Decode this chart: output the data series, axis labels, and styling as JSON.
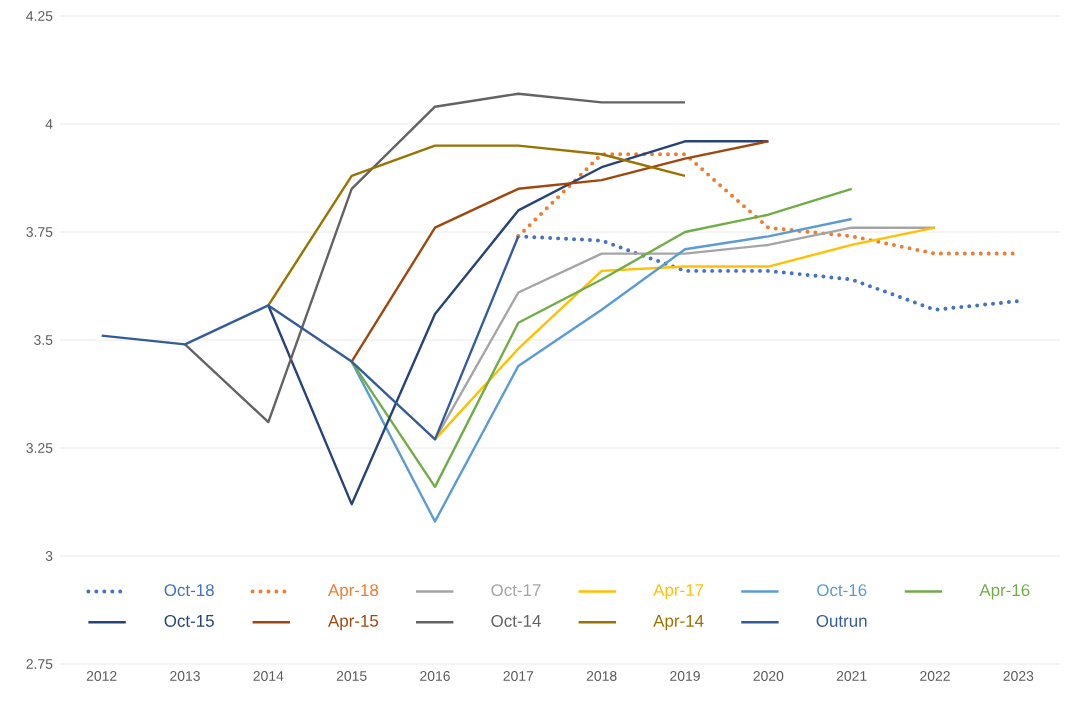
{
  "chart_data": {
    "type": "line",
    "x": [
      2012,
      2013,
      2014,
      2015,
      2016,
      2017,
      2018,
      2019,
      2020,
      2021,
      2022,
      2023
    ],
    "series": [
      {
        "name": "Oct-18",
        "color": "#4472c4",
        "line_style": "dotted",
        "values": [
          null,
          null,
          null,
          null,
          null,
          3.74,
          3.73,
          3.66,
          3.66,
          3.64,
          3.57,
          3.59
        ]
      },
      {
        "name": "Apr-18",
        "color": "#ed7d31",
        "line_style": "dotted",
        "values": [
          null,
          null,
          null,
          null,
          null,
          3.74,
          3.93,
          3.93,
          3.76,
          3.74,
          3.7,
          3.7
        ]
      },
      {
        "name": "Oct-17",
        "color": "#a5a5a5",
        "values": [
          null,
          null,
          null,
          null,
          3.27,
          3.61,
          3.7,
          3.7,
          3.72,
          3.76,
          3.76,
          null
        ]
      },
      {
        "name": "Apr-17",
        "color": "#ffc000",
        "values": [
          null,
          null,
          null,
          null,
          3.27,
          3.48,
          3.66,
          3.67,
          3.67,
          3.72,
          3.76,
          null
        ]
      },
      {
        "name": "Oct-16",
        "color": "#5b9bd5",
        "values": [
          null,
          null,
          null,
          3.45,
          3.08,
          3.44,
          3.57,
          3.71,
          3.74,
          3.78,
          null,
          null
        ]
      },
      {
        "name": "Apr-16",
        "color": "#70ad47",
        "values": [
          null,
          null,
          null,
          3.45,
          3.16,
          3.54,
          3.64,
          3.75,
          3.79,
          3.85,
          null,
          null
        ]
      },
      {
        "name": "Oct-15",
        "color": "#264478",
        "values": [
          null,
          null,
          3.58,
          3.12,
          3.56,
          3.8,
          3.9,
          3.96,
          3.96,
          null,
          null,
          null
        ]
      },
      {
        "name": "Apr-15",
        "color": "#9e480e",
        "values": [
          null,
          null,
          null,
          3.45,
          3.76,
          3.85,
          3.87,
          3.92,
          3.96,
          null,
          null,
          null
        ]
      },
      {
        "name": "Oct-14",
        "color": "#636363",
        "values": [
          null,
          3.49,
          3.31,
          3.85,
          4.04,
          4.07,
          4.05,
          4.05,
          null,
          null,
          null,
          null
        ]
      },
      {
        "name": "Apr-14",
        "color": "#997300",
        "values": [
          null,
          null,
          3.58,
          3.88,
          3.95,
          3.95,
          3.93,
          3.88,
          null,
          null,
          null,
          null
        ]
      },
      {
        "name": "Outrun",
        "color": "#335c99",
        "values": [
          3.51,
          3.49,
          3.58,
          3.45,
          3.27,
          3.74,
          null,
          null,
          null,
          null,
          null,
          null
        ]
      }
    ],
    "xlim": [
      2011.5,
      2023.5
    ],
    "xticks": [
      2012,
      2013,
      2014,
      2015,
      2016,
      2017,
      2018,
      2019,
      2020,
      2021,
      2022,
      2023
    ],
    "ylim": [
      2.75,
      4.25
    ],
    "yticks": [
      2.75,
      3,
      3.25,
      3.5,
      3.75,
      4,
      4.25
    ],
    "grid": "y",
    "legend": "bottom",
    "line_style": "solid",
    "marker": "none"
  }
}
